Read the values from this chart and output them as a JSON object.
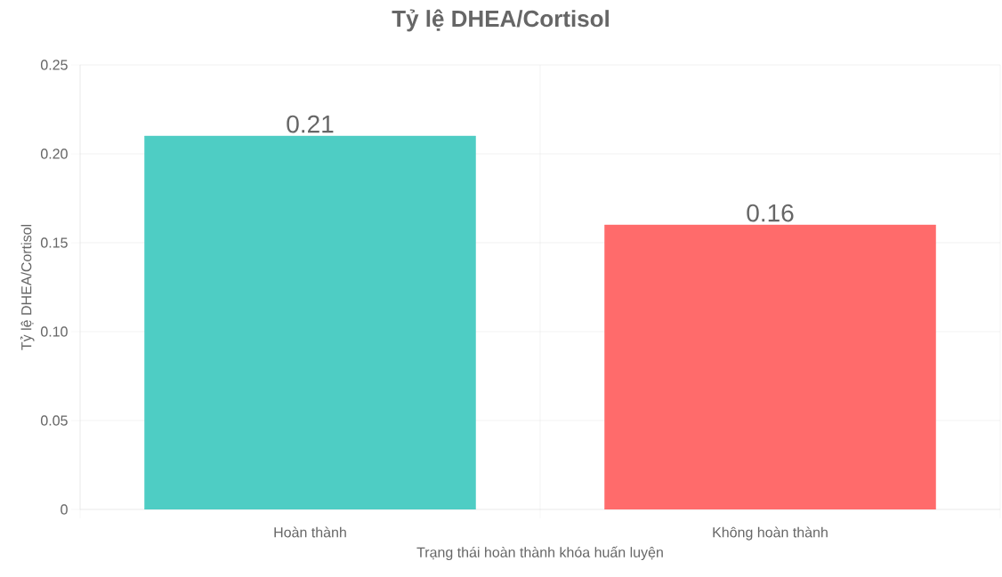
{
  "chart_data": {
    "type": "bar",
    "title": "Tỷ lệ DHEA/Cortisol",
    "xlabel": "Trạng thái hoàn thành khóa huấn luyện",
    "ylabel": "Tỷ lệ DHEA/Cortisol",
    "categories": [
      "Hoàn thành",
      "Không hoàn thành"
    ],
    "values": [
      0.21,
      0.16
    ],
    "colors": [
      "#4ecdc4",
      "#ff6b6b"
    ],
    "ylim": [
      0,
      0.25
    ],
    "yticks": [
      0,
      0.05,
      {
        "value": 0.1,
        "label": "0.10"
      },
      0.15,
      {
        "value": 0.2,
        "label": "0.20"
      },
      0.25
    ],
    "grid": true,
    "data_labels": true
  }
}
